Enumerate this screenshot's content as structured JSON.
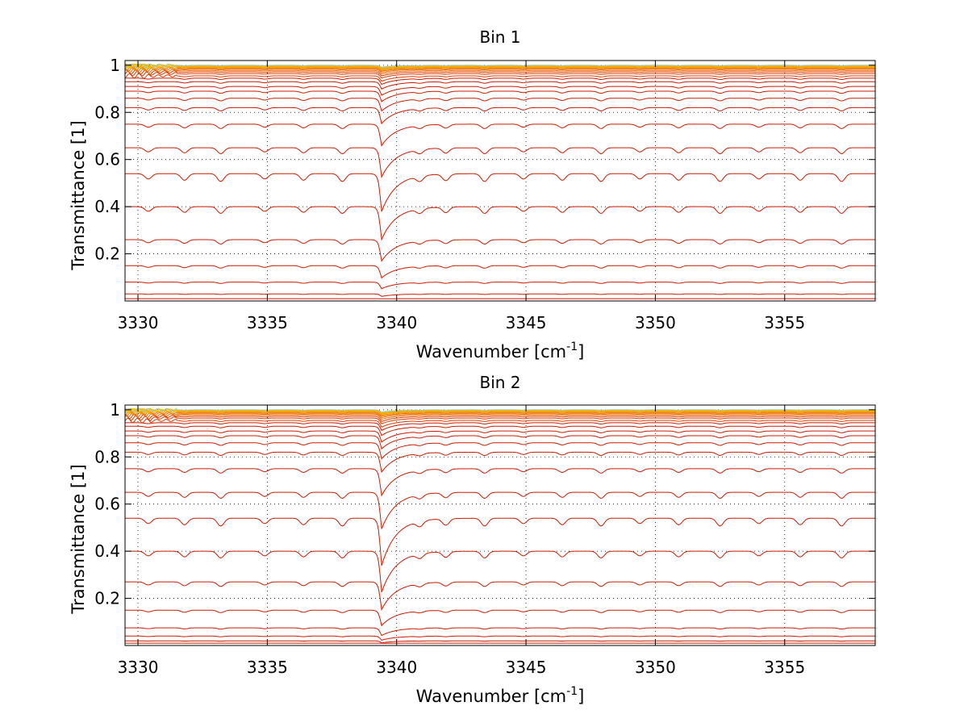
{
  "chart_data": [
    {
      "type": "line",
      "title": "Bin 1",
      "xlabel": "Wavenumber [cm",
      "xlabel_sup": "-1",
      "xlabel_tail": "]",
      "ylabel": "Transmittance [1]",
      "xlim": [
        3329.5,
        3358.5
      ],
      "ylim": [
        0,
        1.02
      ],
      "xticks": [
        3330,
        3335,
        3340,
        3345,
        3350,
        3355
      ],
      "xtick_labels": [
        "3330",
        "3335",
        "3340",
        "3345",
        "3350",
        "3355"
      ],
      "yticks": [
        0.2,
        0.4,
        0.6,
        0.8,
        1
      ],
      "ytick_labels": [
        "0.2",
        "0.4",
        "0.6",
        "0.8",
        "1"
      ],
      "grid": true,
      "legend": "none",
      "main_dip_x": 3339.4,
      "main_dip_depth": 0.16,
      "minor_dip_x": [
        3330.4,
        3331.8,
        3333.2,
        3334.9,
        3336.4,
        3337.9,
        3340.9,
        3341.9,
        3343.4,
        3344.9,
        3346.4,
        3347.9,
        3349.4,
        3350.9,
        3352.5,
        3354.0,
        3355.6,
        3357.2
      ],
      "baseline_levels": [
        0.01,
        0.03,
        0.08,
        0.15,
        0.26,
        0.4,
        0.54,
        0.65,
        0.75,
        0.82,
        0.86,
        0.89,
        0.91,
        0.93,
        0.945,
        0.955,
        0.965,
        0.972,
        0.978,
        0.983,
        0.987,
        0.99,
        0.993,
        0.995,
        0.997,
        0.998,
        0.999,
        1.0
      ]
    },
    {
      "type": "line",
      "title": "Bin 2",
      "xlabel": "Wavenumber [cm",
      "xlabel_sup": "-1",
      "xlabel_tail": "]",
      "ylabel": "Transmittance [1]",
      "xlim": [
        3329.5,
        3358.5
      ],
      "ylim": [
        0,
        1.02
      ],
      "xticks": [
        3330,
        3335,
        3340,
        3345,
        3350,
        3355
      ],
      "xtick_labels": [
        "3330",
        "3335",
        "3340",
        "3345",
        "3350",
        "3355"
      ],
      "yticks": [
        0.2,
        0.4,
        0.6,
        0.8,
        1
      ],
      "ytick_labels": [
        "0.2",
        "0.4",
        "0.6",
        "0.8",
        "1"
      ],
      "grid": true,
      "legend": "none",
      "main_dip_x": 3339.4,
      "main_dip_depth": 0.2,
      "minor_dip_x": [
        3330.4,
        3331.8,
        3333.2,
        3334.9,
        3336.4,
        3337.9,
        3340.9,
        3341.9,
        3343.4,
        3344.9,
        3346.4,
        3347.9,
        3349.4,
        3350.9,
        3352.5,
        3354.0,
        3355.6,
        3357.2
      ],
      "baseline_levels": [
        0.01,
        0.02,
        0.04,
        0.075,
        0.15,
        0.27,
        0.4,
        0.54,
        0.65,
        0.75,
        0.82,
        0.86,
        0.89,
        0.91,
        0.93,
        0.945,
        0.955,
        0.965,
        0.972,
        0.978,
        0.983,
        0.987,
        0.99,
        0.993,
        0.995,
        0.997,
        0.998,
        0.999,
        1.0
      ]
    }
  ]
}
